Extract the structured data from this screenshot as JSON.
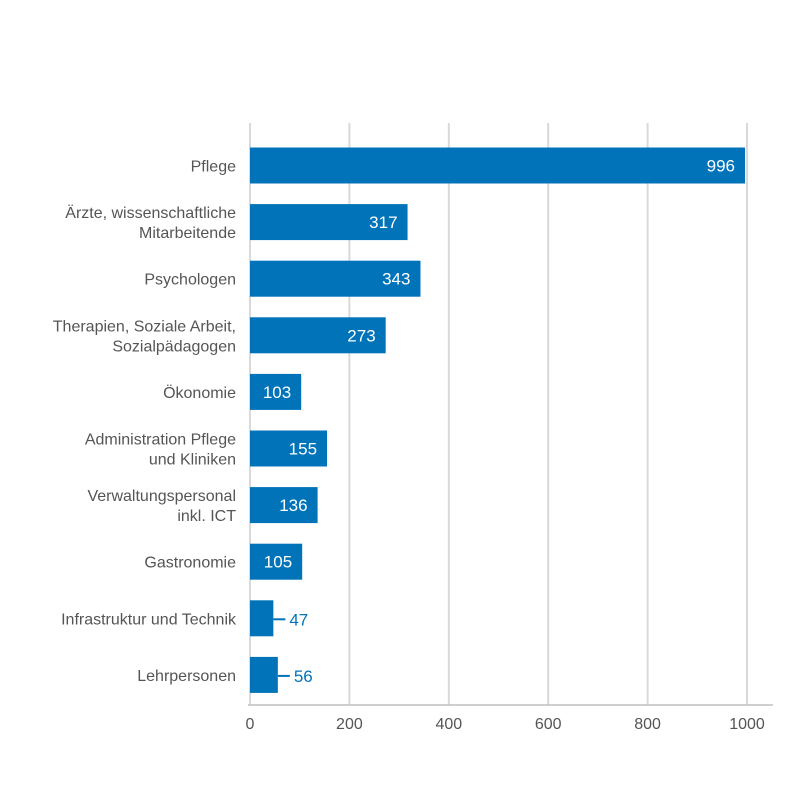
{
  "chart_data": {
    "type": "bar",
    "orientation": "horizontal",
    "title": "",
    "xlabel": "",
    "ylabel": "",
    "categories": [
      [
        "Pflege"
      ],
      [
        "Ärzte, wissenschaftliche",
        "Mitarbeitende"
      ],
      [
        "Psychologen"
      ],
      [
        "Therapien, Soziale Arbeit,",
        "Sozialpädagogen"
      ],
      [
        "Ökonomie"
      ],
      [
        "Administration Pflege",
        "und Kliniken"
      ],
      [
        "Verwaltungspersonal",
        "inkl. ICT"
      ],
      [
        "Gastronomie"
      ],
      [
        "Infrastruktur und Technik"
      ],
      [
        "Lehrpersonen"
      ]
    ],
    "values": [
      996,
      317,
      343,
      273,
      103,
      155,
      136,
      105,
      47,
      56
    ],
    "xlim": [
      0,
      1000
    ],
    "xticks": [
      0,
      200,
      400,
      600,
      800,
      1000
    ],
    "grid": true,
    "colors": {
      "bar": "#0073b9",
      "grid": "#d9d9d9",
      "axis": "#bfbfbf",
      "label_outside": "#0073b9"
    }
  }
}
